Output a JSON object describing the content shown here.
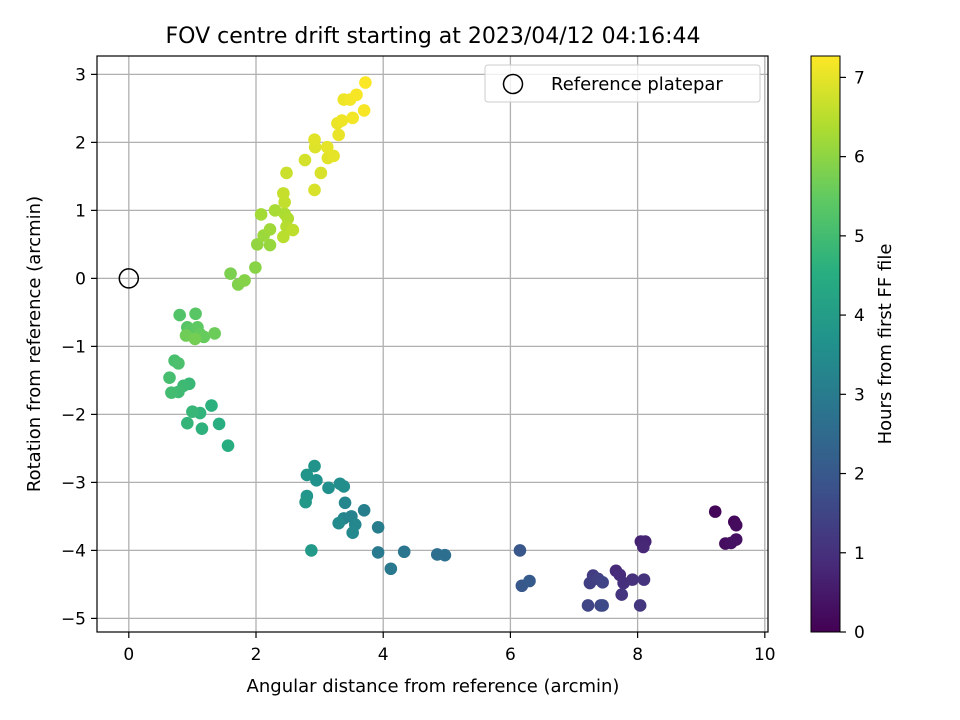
{
  "chart_data": {
    "type": "scatter",
    "title": "FOV centre drift starting at 2023/04/12 04:16:44",
    "xlabel": "Angular distance from reference (arcmin)",
    "ylabel": "Rotation from reference (arcmin)",
    "xlim": [
      -0.5,
      10.05
    ],
    "ylim": [
      -5.2,
      3.27
    ],
    "xticks": [
      0,
      2,
      4,
      6,
      8,
      10
    ],
    "yticks": [
      3,
      2,
      1,
      0,
      -1,
      -2,
      -3,
      -4,
      -5
    ],
    "grid": true,
    "legend": {
      "placement": "top-right",
      "entries": [
        "Reference platepar"
      ]
    },
    "reference_point": {
      "x": 0,
      "y": 0
    },
    "colorbar": {
      "label": "Hours from first FF file",
      "range": [
        0,
        7.27
      ],
      "ticks": [
        0,
        1,
        2,
        3,
        4,
        5,
        6,
        7
      ],
      "colormap": "viridis"
    },
    "series": [
      {
        "points": [
          {
            "x": 9.22,
            "y": -3.43,
            "t": 0.1
          },
          {
            "x": 9.52,
            "y": -3.58,
            "t": 0.15
          },
          {
            "x": 9.55,
            "y": -3.63,
            "t": 0.2
          },
          {
            "x": 9.38,
            "y": -3.9,
            "t": 0.25
          },
          {
            "x": 9.47,
            "y": -3.89,
            "t": 0.3
          },
          {
            "x": 9.55,
            "y": -3.84,
            "t": 0.35
          },
          {
            "x": 8.05,
            "y": -3.87,
            "t": 0.7
          },
          {
            "x": 8.12,
            "y": -3.87,
            "t": 0.75
          },
          {
            "x": 8.09,
            "y": -3.95,
            "t": 0.8
          },
          {
            "x": 7.66,
            "y": -4.3,
            "t": 0.85
          },
          {
            "x": 7.72,
            "y": -4.36,
            "t": 0.9
          },
          {
            "x": 7.78,
            "y": -4.48,
            "t": 0.95
          },
          {
            "x": 7.92,
            "y": -4.43,
            "t": 1.0
          },
          {
            "x": 8.1,
            "y": -4.43,
            "t": 1.05
          },
          {
            "x": 7.75,
            "y": -4.65,
            "t": 1.1
          },
          {
            "x": 8.04,
            "y": -4.81,
            "t": 1.15
          },
          {
            "x": 7.3,
            "y": -4.37,
            "t": 1.3
          },
          {
            "x": 7.25,
            "y": -4.48,
            "t": 1.35
          },
          {
            "x": 7.38,
            "y": -4.42,
            "t": 1.4
          },
          {
            "x": 7.45,
            "y": -4.47,
            "t": 1.45
          },
          {
            "x": 7.22,
            "y": -4.81,
            "t": 1.5
          },
          {
            "x": 7.42,
            "y": -4.81,
            "t": 1.55
          },
          {
            "x": 7.45,
            "y": -4.81,
            "t": 1.6
          },
          {
            "x": 6.15,
            "y": -4.0,
            "t": 1.95
          },
          {
            "x": 6.18,
            "y": -4.52,
            "t": 2.0
          },
          {
            "x": 6.3,
            "y": -4.45,
            "t": 2.05
          },
          {
            "x": 4.85,
            "y": -4.06,
            "t": 2.6
          },
          {
            "x": 4.97,
            "y": -4.07,
            "t": 2.65
          },
          {
            "x": 4.33,
            "y": -4.02,
            "t": 2.85
          },
          {
            "x": 4.12,
            "y": -4.27,
            "t": 2.9
          },
          {
            "x": 3.92,
            "y": -4.03,
            "t": 2.95
          },
          {
            "x": 3.92,
            "y": -3.66,
            "t": 3.05
          },
          {
            "x": 3.7,
            "y": -3.41,
            "t": 3.1
          },
          {
            "x": 3.5,
            "y": -3.5,
            "t": 3.2
          },
          {
            "x": 3.38,
            "y": -3.53,
            "t": 3.25
          },
          {
            "x": 3.4,
            "y": -3.3,
            "t": 3.3
          },
          {
            "x": 3.56,
            "y": -3.62,
            "t": 3.35
          },
          {
            "x": 3.52,
            "y": -3.74,
            "t": 3.4
          },
          {
            "x": 3.3,
            "y": -3.6,
            "t": 3.45
          },
          {
            "x": 3.32,
            "y": -3.02,
            "t": 3.5
          },
          {
            "x": 3.38,
            "y": -3.06,
            "t": 3.55
          },
          {
            "x": 3.14,
            "y": -3.08,
            "t": 3.6
          },
          {
            "x": 2.95,
            "y": -2.97,
            "t": 3.65
          },
          {
            "x": 2.92,
            "y": -2.76,
            "t": 3.7
          },
          {
            "x": 2.8,
            "y": -2.89,
            "t": 3.75
          },
          {
            "x": 2.8,
            "y": -3.2,
            "t": 3.8
          },
          {
            "x": 2.78,
            "y": -3.29,
            "t": 3.85
          },
          {
            "x": 2.87,
            "y": -4.0,
            "t": 3.9
          },
          {
            "x": 1.56,
            "y": -2.46,
            "t": 4.5
          },
          {
            "x": 1.42,
            "y": -2.14,
            "t": 4.55
          },
          {
            "x": 1.3,
            "y": -1.87,
            "t": 4.6
          },
          {
            "x": 1.15,
            "y": -2.21,
            "t": 4.65
          },
          {
            "x": 1.12,
            "y": -1.98,
            "t": 4.7
          },
          {
            "x": 0.92,
            "y": -2.13,
            "t": 4.75
          },
          {
            "x": 1.0,
            "y": -1.96,
            "t": 4.8
          },
          {
            "x": 0.95,
            "y": -1.55,
            "t": 4.85
          },
          {
            "x": 0.86,
            "y": -1.58,
            "t": 4.9
          },
          {
            "x": 0.78,
            "y": -1.67,
            "t": 4.95
          },
          {
            "x": 0.67,
            "y": -1.68,
            "t": 5.0
          },
          {
            "x": 0.64,
            "y": -1.46,
            "t": 5.05
          },
          {
            "x": 0.72,
            "y": -1.21,
            "t": 5.1
          },
          {
            "x": 0.78,
            "y": -1.25,
            "t": 5.15
          },
          {
            "x": 0.8,
            "y": -0.54,
            "t": 5.25
          },
          {
            "x": 0.92,
            "y": -0.72,
            "t": 5.3
          },
          {
            "x": 1.05,
            "y": -0.52,
            "t": 5.35
          },
          {
            "x": 0.97,
            "y": -0.75,
            "t": 5.4
          },
          {
            "x": 1.08,
            "y": -0.72,
            "t": 5.45
          },
          {
            "x": 1.12,
            "y": -0.82,
            "t": 5.5
          },
          {
            "x": 1.18,
            "y": -0.86,
            "t": 5.55
          },
          {
            "x": 1.35,
            "y": -0.81,
            "t": 5.6
          },
          {
            "x": 0.9,
            "y": -0.84,
            "t": 5.65
          },
          {
            "x": 1.04,
            "y": -0.89,
            "t": 5.7
          },
          {
            "x": 1.6,
            "y": 0.07,
            "t": 5.8
          },
          {
            "x": 1.72,
            "y": -0.09,
            "t": 5.85
          },
          {
            "x": 1.82,
            "y": -0.03,
            "t": 5.9
          },
          {
            "x": 1.99,
            "y": 0.16,
            "t": 5.95
          },
          {
            "x": 2.02,
            "y": 0.5,
            "t": 6.05
          },
          {
            "x": 2.22,
            "y": 0.49,
            "t": 6.1
          },
          {
            "x": 2.12,
            "y": 0.63,
            "t": 6.15
          },
          {
            "x": 2.22,
            "y": 0.72,
            "t": 6.2
          },
          {
            "x": 2.08,
            "y": 0.94,
            "t": 6.25
          },
          {
            "x": 2.3,
            "y": 1.0,
            "t": 6.3
          },
          {
            "x": 2.45,
            "y": 0.95,
            "t": 6.35
          },
          {
            "x": 2.5,
            "y": 0.88,
            "t": 6.4
          },
          {
            "x": 2.48,
            "y": 0.76,
            "t": 6.45
          },
          {
            "x": 2.43,
            "y": 0.61,
            "t": 6.5
          },
          {
            "x": 2.58,
            "y": 0.71,
            "t": 6.55
          },
          {
            "x": 2.45,
            "y": 1.12,
            "t": 6.6
          },
          {
            "x": 2.43,
            "y": 1.25,
            "t": 6.65
          },
          {
            "x": 2.48,
            "y": 1.55,
            "t": 6.7
          },
          {
            "x": 2.77,
            "y": 1.74,
            "t": 6.8
          },
          {
            "x": 2.92,
            "y": 1.3,
            "t": 6.85
          },
          {
            "x": 3.02,
            "y": 1.55,
            "t": 6.85
          },
          {
            "x": 2.93,
            "y": 1.93,
            "t": 6.9
          },
          {
            "x": 2.92,
            "y": 2.04,
            "t": 6.95
          },
          {
            "x": 3.13,
            "y": 1.77,
            "t": 6.95
          },
          {
            "x": 3.22,
            "y": 1.8,
            "t": 7.0
          },
          {
            "x": 3.12,
            "y": 1.93,
            "t": 7.0
          },
          {
            "x": 3.3,
            "y": 2.11,
            "t": 7.05
          },
          {
            "x": 3.28,
            "y": 2.28,
            "t": 7.05
          },
          {
            "x": 3.35,
            "y": 2.32,
            "t": 7.1
          },
          {
            "x": 3.38,
            "y": 2.63,
            "t": 7.1
          },
          {
            "x": 3.48,
            "y": 2.63,
            "t": 7.15
          },
          {
            "x": 3.52,
            "y": 2.36,
            "t": 7.15
          },
          {
            "x": 3.58,
            "y": 2.7,
            "t": 7.2
          },
          {
            "x": 3.7,
            "y": 2.47,
            "t": 7.2
          },
          {
            "x": 3.72,
            "y": 2.88,
            "t": 7.25
          }
        ]
      }
    ]
  }
}
